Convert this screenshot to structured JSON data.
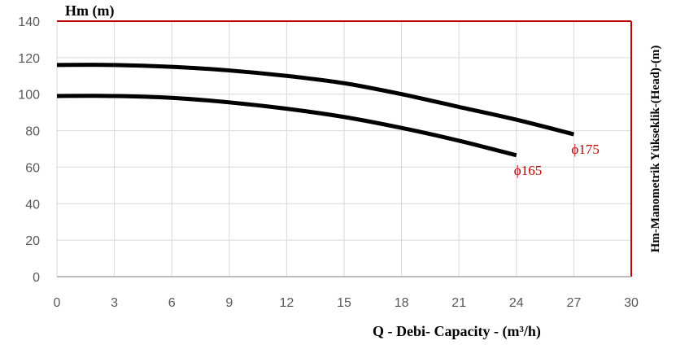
{
  "chart_data": {
    "type": "line",
    "title": "",
    "y_axis_title": "Hm (m)",
    "x_axis_title": "Q - Debi- Capacity - (m³/h)",
    "right_axis_title": "Hm-Manometrik Yükseklik-(Head)-(m)",
    "xlim": [
      0,
      30
    ],
    "ylim": [
      0,
      140
    ],
    "x_ticks": [
      "0",
      "3",
      "6",
      "9",
      "12",
      "15",
      "18",
      "21",
      "24",
      "27",
      "30"
    ],
    "y_ticks": [
      "0",
      "20",
      "40",
      "60",
      "80",
      "100",
      "120",
      "140"
    ],
    "grid": true,
    "legend": "none",
    "series": [
      {
        "name": "ϕ175",
        "x": [
          0,
          3,
          6,
          9,
          12,
          15,
          18,
          21,
          24,
          27
        ],
        "y": [
          116,
          116,
          115,
          113,
          110,
          106,
          100,
          93,
          86,
          78
        ]
      },
      {
        "name": "ϕ165",
        "x": [
          0,
          3,
          6,
          9,
          12,
          15,
          18,
          21,
          24
        ],
        "y": [
          99,
          99,
          98,
          95.5,
          92,
          87.5,
          81.5,
          74.5,
          66.5
        ]
      }
    ],
    "colors": {
      "curve": "#000000",
      "curve_label": "#c00000",
      "frame_right": "#c00000",
      "grid": "#d9d9d9",
      "tick_text": "#595959"
    }
  }
}
